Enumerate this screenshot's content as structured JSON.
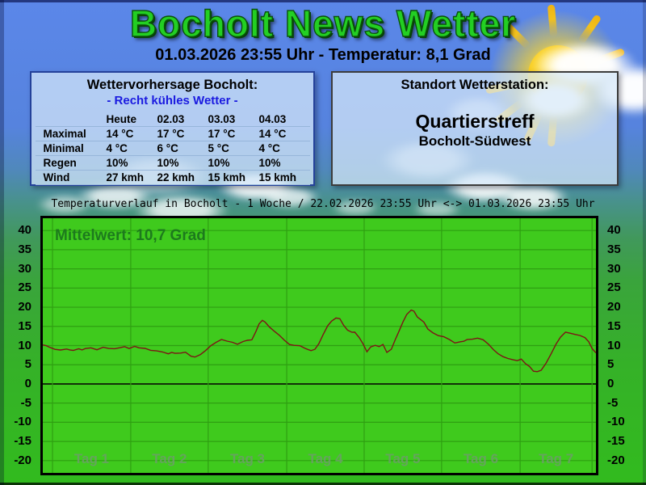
{
  "header": {
    "title": "Bocholt News Wetter",
    "subtitle": "01.03.2026 23:55 Uhr - Temperatur: 8,1 Grad"
  },
  "forecast_panel": {
    "title": "Wettervorhersage Bocholt:",
    "subtitle": "- Recht kühles Wetter -",
    "columns": [
      "",
      "Heute",
      "02.03",
      "03.03",
      "04.03"
    ],
    "rows": [
      {
        "label": "Maximal",
        "values": [
          "14 °C",
          "17 °C",
          "17 °C",
          "14 °C"
        ]
      },
      {
        "label": "Minimal",
        "values": [
          "4 °C",
          "6 °C",
          "5 °C",
          "4 °C"
        ]
      },
      {
        "label": "Regen",
        "values": [
          "10%",
          "10%",
          "10%",
          "10%"
        ]
      },
      {
        "label": "Wind",
        "values": [
          "27 kmh",
          "22 kmh",
          "15 kmh",
          "15 kmh"
        ]
      }
    ]
  },
  "station_panel": {
    "title": "Standort Wetterstation:",
    "name": "Quartierstreff",
    "location": "Bocholt-Südwest"
  },
  "chart_data": {
    "type": "line",
    "title": "Temperaturverlauf in Bocholt - 1 Woche / 22.02.2026 23:55 Uhr <-> 01.03.2026 23:55 Uhr",
    "annotation": "Mittelwert: 10,7 Grad",
    "mean_value": 10.7,
    "unit": "Grad",
    "y_ticks": [
      40,
      35,
      30,
      25,
      20,
      15,
      10,
      5,
      0,
      -5,
      -10,
      -15,
      -20
    ],
    "ylim": [
      -23.2,
      43.2
    ],
    "grid": true,
    "x_categories": [
      "Tag 1",
      "Tag 2",
      "Tag 3",
      "Tag 4",
      "Tag 5",
      "Tag 6",
      "Tag 7"
    ],
    "day_boundaries": [
      0.0175,
      0.159,
      0.299,
      0.441,
      0.581,
      0.721,
      0.863,
      0.993
    ],
    "colors": {
      "plot_bg": "#3fca1d",
      "grid": "#2f9f12",
      "zero_line": "#123008",
      "line": "#7d1416",
      "annotation": "#1d7a1d",
      "day_label": "#6aa065"
    },
    "series": [
      {
        "name": "Temperatur",
        "color": "#7d1416",
        "points": [
          [
            0.0,
            10.2
          ],
          [
            0.012,
            9.6
          ],
          [
            0.022,
            9.2
          ],
          [
            0.032,
            8.9
          ],
          [
            0.043,
            9.1
          ],
          [
            0.055,
            8.9
          ],
          [
            0.065,
            9.0
          ],
          [
            0.077,
            9.1
          ],
          [
            0.087,
            9.3
          ],
          [
            0.098,
            9.1
          ],
          [
            0.109,
            9.4
          ],
          [
            0.119,
            9.2
          ],
          [
            0.13,
            9.0
          ],
          [
            0.14,
            9.3
          ],
          [
            0.148,
            9.8
          ],
          [
            0.156,
            9.4
          ],
          [
            0.166,
            9.9
          ],
          [
            0.174,
            9.5
          ],
          [
            0.185,
            9.1
          ],
          [
            0.195,
            8.8
          ],
          [
            0.206,
            8.6
          ],
          [
            0.217,
            8.2
          ],
          [
            0.227,
            8.0
          ],
          [
            0.239,
            8.1
          ],
          [
            0.249,
            7.9
          ],
          [
            0.258,
            8.1
          ],
          [
            0.268,
            7.3
          ],
          [
            0.275,
            7.1
          ],
          [
            0.285,
            7.8
          ],
          [
            0.294,
            8.8
          ],
          [
            0.304,
            10.1
          ],
          [
            0.314,
            11.0
          ],
          [
            0.323,
            11.4
          ],
          [
            0.333,
            11.1
          ],
          [
            0.343,
            10.7
          ],
          [
            0.352,
            10.4
          ],
          [
            0.362,
            11.0
          ],
          [
            0.37,
            11.3
          ],
          [
            0.378,
            11.6
          ],
          [
            0.385,
            13.5
          ],
          [
            0.391,
            15.8
          ],
          [
            0.397,
            16.6
          ],
          [
            0.402,
            16.0
          ],
          [
            0.41,
            14.8
          ],
          [
            0.42,
            13.6
          ],
          [
            0.428,
            12.6
          ],
          [
            0.437,
            11.3
          ],
          [
            0.446,
            10.4
          ],
          [
            0.454,
            10.1
          ],
          [
            0.465,
            9.9
          ],
          [
            0.475,
            9.3
          ],
          [
            0.485,
            8.7
          ],
          [
            0.492,
            9.0
          ],
          [
            0.499,
            10.5
          ],
          [
            0.507,
            12.8
          ],
          [
            0.515,
            15.0
          ],
          [
            0.522,
            16.4
          ],
          [
            0.53,
            17.2
          ],
          [
            0.537,
            17.0
          ],
          [
            0.544,
            15.2
          ],
          [
            0.551,
            14.0
          ],
          [
            0.559,
            13.3
          ],
          [
            0.564,
            13.6
          ],
          [
            0.572,
            12.0
          ],
          [
            0.579,
            10.3
          ],
          [
            0.586,
            8.5
          ],
          [
            0.593,
            9.7
          ],
          [
            0.601,
            10.1
          ],
          [
            0.608,
            9.9
          ],
          [
            0.615,
            10.2
          ],
          [
            0.622,
            8.2
          ],
          [
            0.63,
            9.0
          ],
          [
            0.637,
            11.5
          ],
          [
            0.644,
            13.8
          ],
          [
            0.651,
            16.0
          ],
          [
            0.658,
            18.0
          ],
          [
            0.666,
            19.3
          ],
          [
            0.671,
            18.8
          ],
          [
            0.677,
            17.4
          ],
          [
            0.683,
            16.9
          ],
          [
            0.689,
            16.2
          ],
          [
            0.696,
            14.3
          ],
          [
            0.705,
            13.3
          ],
          [
            0.715,
            12.6
          ],
          [
            0.725,
            12.2
          ],
          [
            0.735,
            11.5
          ],
          [
            0.745,
            10.8
          ],
          [
            0.755,
            10.9
          ],
          [
            0.767,
            11.4
          ],
          [
            0.777,
            11.8
          ],
          [
            0.786,
            12.0
          ],
          [
            0.796,
            11.5
          ],
          [
            0.806,
            10.2
          ],
          [
            0.815,
            9.0
          ],
          [
            0.823,
            7.8
          ],
          [
            0.832,
            7.0
          ],
          [
            0.841,
            6.6
          ],
          [
            0.85,
            6.4
          ],
          [
            0.858,
            6.0
          ],
          [
            0.865,
            6.3
          ],
          [
            0.873,
            5.2
          ],
          [
            0.88,
            4.4
          ],
          [
            0.887,
            3.5
          ],
          [
            0.894,
            3.1
          ],
          [
            0.901,
            3.6
          ],
          [
            0.91,
            5.5
          ],
          [
            0.919,
            8.0
          ],
          [
            0.928,
            10.5
          ],
          [
            0.936,
            12.4
          ],
          [
            0.945,
            13.4
          ],
          [
            0.954,
            13.1
          ],
          [
            0.962,
            12.9
          ],
          [
            0.971,
            12.6
          ],
          [
            0.98,
            12.2
          ],
          [
            0.987,
            11.0
          ],
          [
            0.993,
            9.4
          ],
          [
            1.0,
            8.1
          ]
        ]
      }
    ]
  }
}
